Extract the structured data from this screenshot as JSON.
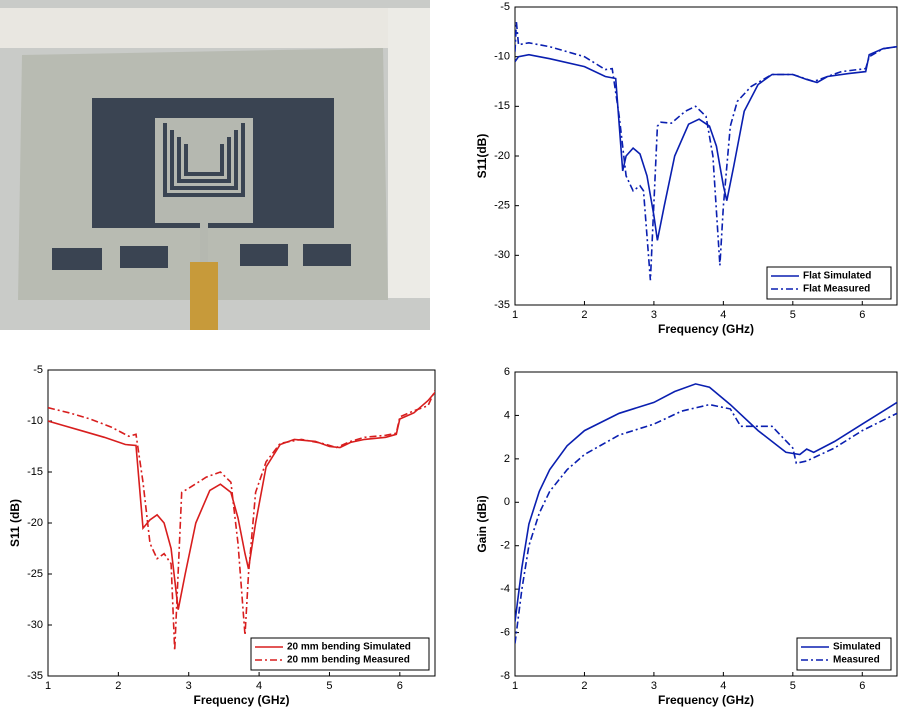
{
  "chart_data": [
    {
      "type": "line",
      "xlabel": "Frequency (GHz)",
      "ylabel": "S11(dB)",
      "xlim": [
        1,
        6.5
      ],
      "ylim": [
        -35,
        -5
      ],
      "xticks": [
        1,
        2,
        3,
        4,
        5,
        6
      ],
      "yticks": [
        -35,
        -30,
        -25,
        -20,
        -15,
        -10,
        -5
      ],
      "legend": "lower right",
      "series": [
        {
          "name": "Flat Simulated",
          "color": "#0a1fb0",
          "dash": "solid",
          "x": [
            1,
            1.05,
            1.2,
            1.5,
            2,
            2.3,
            2.45,
            2.55,
            2.6,
            2.7,
            2.8,
            2.9,
            3.0,
            3.05,
            3.15,
            3.3,
            3.5,
            3.65,
            3.8,
            3.9,
            4.0,
            4.05,
            4.15,
            4.3,
            4.5,
            4.7,
            5.0,
            5.2,
            5.35,
            5.5,
            5.8,
            6.05,
            6.1,
            6.3,
            6.5
          ],
          "values": [
            -10.5,
            -10,
            -9.8,
            -10.2,
            -11,
            -12,
            -12.2,
            -21.5,
            -20,
            -19.2,
            -19.8,
            -22,
            -26,
            -28.5,
            -25,
            -20,
            -16.8,
            -16.3,
            -17,
            -19,
            -23,
            -24.5,
            -21,
            -15.5,
            -12.8,
            -11.8,
            -11.8,
            -12.3,
            -12.6,
            -12,
            -11.7,
            -11.5,
            -9.8,
            -9.2,
            -9
          ]
        },
        {
          "name": "Flat Measured",
          "color": "#0a1fb0",
          "dash": "dashdot",
          "x": [
            1,
            1.02,
            1.05,
            1.2,
            1.5,
            2,
            2.3,
            2.4,
            2.5,
            2.6,
            2.7,
            2.8,
            2.85,
            2.95,
            3.05,
            3.1,
            3.25,
            3.45,
            3.6,
            3.75,
            3.85,
            3.95,
            4.0,
            4.1,
            4.2,
            4.4,
            4.7,
            5.0,
            5.3,
            5.5,
            5.7,
            6.05,
            6.1,
            6.3,
            6.5
          ],
          "values": [
            -9.5,
            -6.5,
            -8.8,
            -8.6,
            -9,
            -10,
            -11.3,
            -11.2,
            -16,
            -22,
            -23.5,
            -23,
            -23.5,
            -32.5,
            -17,
            -16.6,
            -16.7,
            -15.5,
            -15,
            -16,
            -20,
            -31,
            -25,
            -17,
            -14.5,
            -13,
            -11.8,
            -11.8,
            -12.5,
            -12,
            -11.5,
            -11.2,
            -10,
            -9.2,
            -9
          ]
        }
      ]
    },
    {
      "type": "line",
      "xlabel": "Frequency (GHz)",
      "ylabel": "S11 (dB)",
      "xlim": [
        1,
        6.5
      ],
      "ylim": [
        -35,
        -5
      ],
      "xticks": [
        1,
        2,
        3,
        4,
        5,
        6
      ],
      "yticks": [
        -35,
        -30,
        -25,
        -20,
        -15,
        -10,
        -5
      ],
      "legend": "lower right",
      "series": [
        {
          "name": "20 mm bending Simulated",
          "color": "#d81e1e",
          "dash": "solid",
          "x": [
            1,
            1.2,
            1.5,
            1.8,
            2.1,
            2.25,
            2.35,
            2.45,
            2.55,
            2.65,
            2.75,
            2.85,
            2.95,
            3.1,
            3.3,
            3.45,
            3.6,
            3.7,
            3.8,
            3.85,
            3.95,
            4.1,
            4.3,
            4.5,
            4.8,
            5.0,
            5.15,
            5.3,
            5.5,
            5.8,
            5.95,
            6.0,
            6.2,
            6.4,
            6.5
          ],
          "values": [
            -10,
            -10.4,
            -11,
            -11.6,
            -12.3,
            -12.4,
            -20.5,
            -19.7,
            -19.2,
            -20,
            -22.5,
            -28.5,
            -25,
            -20,
            -16.8,
            -16.2,
            -17,
            -19.5,
            -23,
            -24.5,
            -20,
            -14.5,
            -12.3,
            -11.8,
            -12,
            -12.5,
            -12.6,
            -12.1,
            -11.8,
            -11.6,
            -11.3,
            -9.8,
            -9.2,
            -8,
            -7.2
          ]
        },
        {
          "name": "20 mm bending Measured",
          "color": "#d81e1e",
          "dash": "dashdot",
          "x": [
            1,
            1.3,
            1.6,
            1.9,
            2.15,
            2.25,
            2.35,
            2.45,
            2.55,
            2.65,
            2.75,
            2.8,
            2.9,
            3.0,
            3.25,
            3.45,
            3.6,
            3.7,
            3.8,
            3.85,
            3.95,
            4.1,
            4.3,
            4.6,
            4.9,
            5.1,
            5.3,
            5.5,
            5.8,
            5.95,
            6.0,
            6.2,
            6.4,
            6.5
          ],
          "values": [
            -8.7,
            -9.2,
            -9.8,
            -10.6,
            -11.5,
            -11.3,
            -16,
            -22,
            -23.5,
            -23,
            -24,
            -32.5,
            -17,
            -16.6,
            -15.5,
            -15,
            -16,
            -22,
            -31,
            -25,
            -17,
            -14,
            -12.2,
            -11.8,
            -12.2,
            -12.6,
            -12,
            -11.6,
            -11.4,
            -11.2,
            -9.6,
            -9,
            -8.5,
            -7
          ]
        }
      ]
    },
    {
      "type": "line",
      "xlabel": "Frequency (GHz)",
      "ylabel": "Gain (dBi)",
      "xlim": [
        1,
        6.5
      ],
      "ylim": [
        -8,
        6
      ],
      "xticks": [
        1,
        2,
        3,
        4,
        5,
        6
      ],
      "yticks": [
        -8,
        -6,
        -4,
        -2,
        0,
        2,
        4,
        6
      ],
      "legend": "lower right",
      "series": [
        {
          "name": "Simulated",
          "color": "#0a1fb0",
          "dash": "solid",
          "x": [
            1,
            1.1,
            1.2,
            1.35,
            1.5,
            1.75,
            2,
            2.5,
            3,
            3.3,
            3.6,
            3.8,
            4.1,
            4.5,
            4.9,
            5.1,
            5.2,
            5.3,
            5.6,
            6,
            6.5
          ],
          "values": [
            -5.5,
            -3,
            -1,
            0.5,
            1.5,
            2.6,
            3.3,
            4.1,
            4.6,
            5.1,
            5.45,
            5.3,
            4.5,
            3.3,
            2.3,
            2.2,
            2.45,
            2.3,
            2.8,
            3.6,
            4.6
          ]
        },
        {
          "name": "Measured",
          "color": "#0a1fb0",
          "dash": "dashdot",
          "x": [
            1,
            1.1,
            1.2,
            1.35,
            1.5,
            1.75,
            2,
            2.5,
            3,
            3.4,
            3.8,
            4.1,
            4.25,
            4.7,
            5.0,
            5.05,
            5.2,
            5.6,
            6,
            6.5
          ],
          "values": [
            -6.5,
            -4,
            -2,
            -0.5,
            0.5,
            1.5,
            2.2,
            3.1,
            3.6,
            4.2,
            4.5,
            4.3,
            3.5,
            3.5,
            2.5,
            1.8,
            1.9,
            2.5,
            3.3,
            4.1
          ]
        }
      ]
    }
  ]
}
